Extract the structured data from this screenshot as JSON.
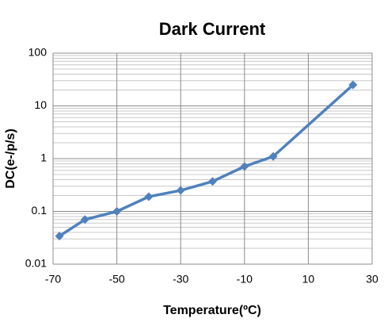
{
  "chart_data": {
    "type": "line",
    "title": "Dark Current",
    "x_label": "Temperature(ºC)",
    "y_label": "DC(e-/p/s)",
    "x": [
      -68,
      -60,
      -50,
      -40,
      -30,
      -20,
      -10,
      -1,
      24
    ],
    "values": [
      0.034,
      0.07,
      0.1,
      0.19,
      0.25,
      0.37,
      0.71,
      1.1,
      25
    ],
    "color": "#4f81bd",
    "xlim": [
      -70,
      30
    ],
    "xticks": [
      -70,
      -50,
      -30,
      -10,
      10,
      30
    ],
    "ylim": [
      0.01,
      100
    ],
    "yticks": [
      0.01,
      0.1,
      1,
      10,
      100
    ],
    "y_log": true,
    "grid": true,
    "minor_grid": true
  }
}
